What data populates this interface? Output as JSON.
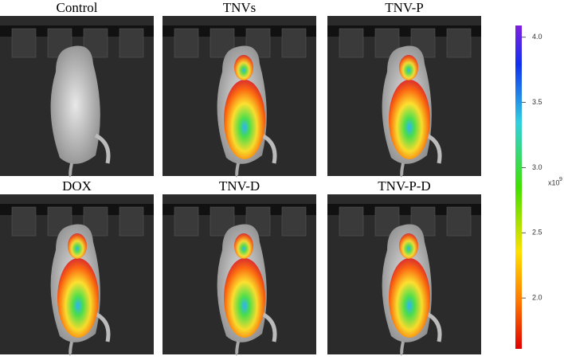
{
  "panels": [
    {
      "title": "Control"
    },
    {
      "title": "TNVs"
    },
    {
      "title": "TNV-P"
    },
    {
      "title": "DOX"
    },
    {
      "title": "TNV-D"
    },
    {
      "title": "TNV-P-D"
    }
  ],
  "colorbar": {
    "range": [
      1.61,
      4.09
    ],
    "ticks": [
      {
        "value": 2.0,
        "label": "2.0"
      },
      {
        "value": 2.5,
        "label": "2.5"
      },
      {
        "value": 3.0,
        "label": "3.0"
      },
      {
        "value": 3.5,
        "label": "3.5"
      },
      {
        "value": 4.0,
        "label": "4.0"
      }
    ],
    "unit": "x10",
    "exponent": "9"
  }
}
